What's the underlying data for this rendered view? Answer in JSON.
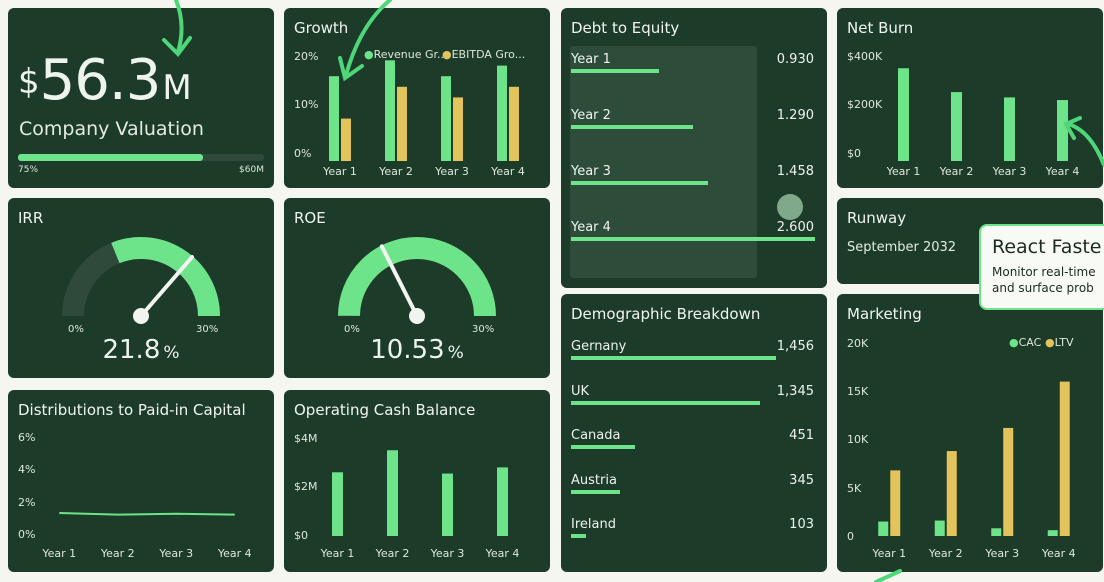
{
  "colors": {
    "green": "#6de38a",
    "yellow": "#e3c35b",
    "card": "#1c3b29",
    "track": "#2f4a3a"
  },
  "valuation": {
    "currency": "$",
    "amount": "56.3",
    "unit": "M",
    "label": "Company Valuation",
    "progress_left": "75%",
    "progress_right": "$60M",
    "progress_fraction": 0.75
  },
  "growth": {
    "title": "Growth",
    "legend": [
      "Revenue Gr...",
      "EBITDA Gro..."
    ],
    "y_ticks": [
      "20%",
      "10%",
      "0%"
    ],
    "chart_data": {
      "type": "bar",
      "categories": [
        "Year 1",
        "Year 2",
        "Year 3",
        "Year 4"
      ],
      "series": [
        {
          "name": "Revenue Gr...",
          "values": [
            16,
            19,
            16,
            18
          ]
        },
        {
          "name": "EBITDA Gro...",
          "values": [
            8,
            14,
            12,
            14
          ]
        }
      ],
      "ylim": [
        0,
        20
      ]
    }
  },
  "debt": {
    "title": "Debt to Equity",
    "rows": [
      {
        "label": "Year 1",
        "value": "0.930",
        "fraction": 0.36
      },
      {
        "label": "Year 2",
        "value": "1.290",
        "fraction": 0.5
      },
      {
        "label": "Year 3",
        "value": "1.458",
        "fraction": 0.56
      },
      {
        "label": "Year 4",
        "value": "2.600",
        "fraction": 1.0
      }
    ]
  },
  "netburn": {
    "title": "Net Burn",
    "y_ticks": [
      "$400K",
      "$200K",
      "$0"
    ],
    "chart_data": {
      "type": "bar",
      "categories": [
        "Year 1",
        "Year 2",
        "Year 3",
        "Year 4"
      ],
      "values": [
        350,
        260,
        240,
        230
      ],
      "ylim": [
        0,
        400
      ]
    }
  },
  "irr": {
    "title": "IRR",
    "min": "0%",
    "max": "30%",
    "value": "21.8",
    "unit": "%",
    "fraction": 0.727
  },
  "roe": {
    "title": "ROE",
    "min": "0%",
    "max": "30%",
    "value": "10.53",
    "unit": "%",
    "fraction": 0.351
  },
  "runway": {
    "title": "Runway",
    "value": "September 2032"
  },
  "tooltip": {
    "title": "React Faste",
    "line1": "Monitor real-time",
    "line2": "and surface prob"
  },
  "demographic": {
    "title": "Demographic Breakdown",
    "rows": [
      {
        "label": "Gernany",
        "value": "1,456",
        "fraction": 1.0
      },
      {
        "label": "UK",
        "value": "1,345",
        "fraction": 0.924
      },
      {
        "label": "Canada",
        "value": "451",
        "fraction": 0.31
      },
      {
        "label": "Austria",
        "value": "345",
        "fraction": 0.237
      },
      {
        "label": "Ireland",
        "value": "103",
        "fraction": 0.071
      }
    ]
  },
  "marketing": {
    "title": "Marketing",
    "legend": [
      "CAC",
      "LTV"
    ],
    "y_ticks": [
      "20K",
      "15K",
      "10K",
      "5K",
      "0"
    ],
    "chart_data": {
      "type": "bar",
      "categories": [
        "Year 1",
        "Year 2",
        "Year 3",
        "Year 4"
      ],
      "series": [
        {
          "name": "CAC",
          "values": [
            1.5,
            1.6,
            0.8,
            0.6
          ]
        },
        {
          "name": "LTV",
          "values": [
            6.8,
            8.8,
            11.2,
            16.0
          ]
        }
      ],
      "ylim": [
        0,
        20
      ]
    }
  },
  "distributions": {
    "title": "Distributions to Paid-in Capital",
    "y_ticks": [
      "6%",
      "4%",
      "2%",
      "0%"
    ],
    "chart_data": {
      "type": "line",
      "categories": [
        "Year 1",
        "Year 2",
        "Year 3",
        "Year 4"
      ],
      "values": [
        1.3,
        1.2,
        1.25,
        1.2
      ],
      "ylim": [
        0,
        6
      ]
    }
  },
  "ocb": {
    "title": "Operating Cash Balance",
    "y_ticks": [
      "$4M",
      "$2M",
      "$0"
    ],
    "chart_data": {
      "type": "bar",
      "categories": [
        "Year 1",
        "Year 2",
        "Year 3",
        "Year 4"
      ],
      "values": [
        2.6,
        3.5,
        2.55,
        2.8
      ],
      "ylim": [
        0,
        4
      ]
    }
  }
}
